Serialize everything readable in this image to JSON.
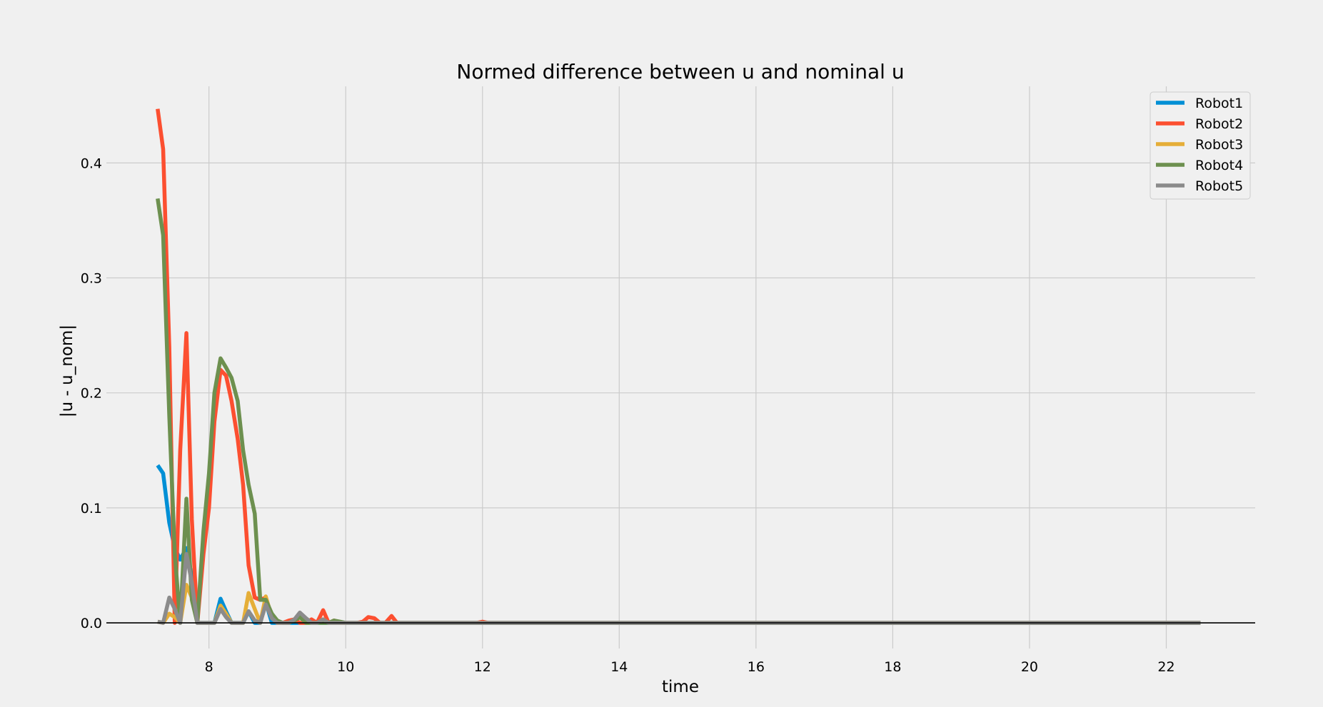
{
  "chart_data": {
    "type": "line",
    "title": "Normed difference between u and nominal u",
    "xlabel": "time",
    "ylabel": "|u - u_nom|",
    "xlim": [
      6.5,
      23.3
    ],
    "ylim": [
      -0.0223,
      0.4666
    ],
    "xticks": [
      8,
      10,
      12,
      14,
      16,
      18,
      20,
      22
    ],
    "yticks": [
      0.0,
      0.1,
      0.2,
      0.3,
      0.4
    ],
    "xtick_labels": [
      "8",
      "10",
      "12",
      "14",
      "16",
      "18",
      "20",
      "22"
    ],
    "ytick_labels": [
      "0.0",
      "0.1",
      "0.2",
      "0.3",
      "0.4"
    ],
    "grid": true,
    "legend_position": "top-right",
    "zero_line": true,
    "x_end": 22.5,
    "series": [
      {
        "name": "Robot1",
        "color": "#008fd5",
        "points": [
          [
            7.25,
            0.137
          ],
          [
            7.33,
            0.13
          ],
          [
            7.42,
            0.087
          ],
          [
            7.5,
            0.065
          ],
          [
            7.58,
            0.055
          ],
          [
            7.67,
            0.065
          ],
          [
            7.75,
            0.04
          ],
          [
            7.83,
            0.0
          ],
          [
            7.92,
            0.0
          ],
          [
            8.0,
            0.0
          ],
          [
            8.08,
            0.0
          ],
          [
            8.17,
            0.021
          ],
          [
            8.25,
            0.01
          ],
          [
            8.33,
            0.0
          ],
          [
            8.42,
            0.0
          ],
          [
            8.5,
            0.0
          ],
          [
            8.58,
            0.01
          ],
          [
            8.67,
            0.0
          ],
          [
            8.75,
            0.0
          ],
          [
            8.83,
            0.018
          ],
          [
            8.92,
            0.0
          ],
          [
            9.0,
            0.0
          ],
          [
            9.33,
            0.0
          ],
          [
            22.5,
            0.0
          ]
        ]
      },
      {
        "name": "Robot2",
        "color": "#fc4f30",
        "points": [
          [
            7.25,
            0.447
          ],
          [
            7.33,
            0.412
          ],
          [
            7.42,
            0.24
          ],
          [
            7.5,
            0.0
          ],
          [
            7.58,
            0.15
          ],
          [
            7.67,
            0.252
          ],
          [
            7.75,
            0.09
          ],
          [
            7.83,
            0.0
          ],
          [
            7.92,
            0.06
          ],
          [
            8.0,
            0.1
          ],
          [
            8.08,
            0.175
          ],
          [
            8.17,
            0.22
          ],
          [
            8.25,
            0.215
          ],
          [
            8.33,
            0.193
          ],
          [
            8.42,
            0.16
          ],
          [
            8.5,
            0.12
          ],
          [
            8.58,
            0.05
          ],
          [
            8.67,
            0.022
          ],
          [
            8.75,
            0.02
          ],
          [
            8.83,
            0.022
          ],
          [
            8.92,
            0.005
          ],
          [
            9.0,
            0.0
          ],
          [
            9.08,
            0.0
          ],
          [
            9.17,
            0.002
          ],
          [
            9.25,
            0.003
          ],
          [
            9.33,
            0.0
          ],
          [
            9.42,
            0.0
          ],
          [
            9.5,
            0.003
          ],
          [
            9.58,
            0.0
          ],
          [
            9.67,
            0.011
          ],
          [
            9.75,
            0.0
          ],
          [
            9.83,
            0.002
          ],
          [
            9.92,
            0.0
          ],
          [
            10.0,
            0.0
          ],
          [
            10.17,
            0.0
          ],
          [
            10.25,
            0.001
          ],
          [
            10.33,
            0.005
          ],
          [
            10.42,
            0.004
          ],
          [
            10.5,
            0.0
          ],
          [
            10.58,
            0.0
          ],
          [
            10.67,
            0.006
          ],
          [
            10.75,
            0.0
          ],
          [
            11.0,
            0.0
          ],
          [
            11.92,
            0.0
          ],
          [
            12.0,
            0.001
          ],
          [
            12.08,
            0.0
          ],
          [
            22.5,
            0.0
          ]
        ]
      },
      {
        "name": "Robot3",
        "color": "#e5ae38",
        "points": [
          [
            7.25,
            0.001
          ],
          [
            7.33,
            0.0
          ],
          [
            7.42,
            0.008
          ],
          [
            7.5,
            0.005
          ],
          [
            7.58,
            0.0
          ],
          [
            7.67,
            0.033
          ],
          [
            7.75,
            0.022
          ],
          [
            7.83,
            0.0
          ],
          [
            7.92,
            0.0
          ],
          [
            8.0,
            0.0
          ],
          [
            8.08,
            0.0
          ],
          [
            8.17,
            0.015
          ],
          [
            8.25,
            0.008
          ],
          [
            8.33,
            0.0
          ],
          [
            8.42,
            0.0
          ],
          [
            8.5,
            0.0
          ],
          [
            8.58,
            0.026
          ],
          [
            8.67,
            0.012
          ],
          [
            8.75,
            0.0
          ],
          [
            8.83,
            0.023
          ],
          [
            8.92,
            0.005
          ],
          [
            9.0,
            0.0
          ],
          [
            9.08,
            0.0
          ],
          [
            9.17,
            0.0
          ],
          [
            9.25,
            0.003
          ],
          [
            9.33,
            0.007
          ],
          [
            9.42,
            0.0
          ],
          [
            9.5,
            0.0
          ],
          [
            9.58,
            0.0
          ],
          [
            9.67,
            0.003
          ],
          [
            9.75,
            0.0
          ],
          [
            10.0,
            0.0
          ],
          [
            22.5,
            0.0
          ]
        ]
      },
      {
        "name": "Robot4",
        "color": "#6d904f",
        "points": [
          [
            7.25,
            0.369
          ],
          [
            7.33,
            0.337
          ],
          [
            7.42,
            0.18
          ],
          [
            7.5,
            0.06
          ],
          [
            7.58,
            0.0
          ],
          [
            7.67,
            0.108
          ],
          [
            7.75,
            0.02
          ],
          [
            7.83,
            0.0
          ],
          [
            7.92,
            0.08
          ],
          [
            8.0,
            0.13
          ],
          [
            8.08,
            0.2
          ],
          [
            8.17,
            0.23
          ],
          [
            8.25,
            0.222
          ],
          [
            8.33,
            0.213
          ],
          [
            8.42,
            0.193
          ],
          [
            8.5,
            0.15
          ],
          [
            8.58,
            0.12
          ],
          [
            8.67,
            0.095
          ],
          [
            8.75,
            0.02
          ],
          [
            8.83,
            0.02
          ],
          [
            8.92,
            0.008
          ],
          [
            9.0,
            0.002
          ],
          [
            9.08,
            0.0
          ],
          [
            9.17,
            0.0
          ],
          [
            9.25,
            0.002
          ],
          [
            9.33,
            0.005
          ],
          [
            9.42,
            0.0
          ],
          [
            9.5,
            0.0
          ],
          [
            9.58,
            0.0
          ],
          [
            9.67,
            0.0
          ],
          [
            9.75,
            0.0
          ],
          [
            9.83,
            0.002
          ],
          [
            9.92,
            0.001
          ],
          [
            10.0,
            0.0
          ],
          [
            22.5,
            0.0
          ]
        ]
      },
      {
        "name": "Robot5",
        "color": "#8b8b8b",
        "points": [
          [
            7.25,
            0.001
          ],
          [
            7.33,
            0.0
          ],
          [
            7.42,
            0.022
          ],
          [
            7.5,
            0.012
          ],
          [
            7.58,
            0.0
          ],
          [
            7.67,
            0.06
          ],
          [
            7.75,
            0.035
          ],
          [
            7.83,
            0.0
          ],
          [
            7.92,
            0.0
          ],
          [
            8.0,
            0.0
          ],
          [
            8.08,
            0.0
          ],
          [
            8.17,
            0.012
          ],
          [
            8.25,
            0.005
          ],
          [
            8.33,
            0.0
          ],
          [
            8.42,
            0.0
          ],
          [
            8.5,
            0.0
          ],
          [
            8.58,
            0.01
          ],
          [
            8.67,
            0.002
          ],
          [
            8.75,
            0.0
          ],
          [
            8.83,
            0.016
          ],
          [
            8.92,
            0.004
          ],
          [
            9.0,
            0.0
          ],
          [
            9.08,
            0.0
          ],
          [
            9.17,
            0.0
          ],
          [
            9.25,
            0.003
          ],
          [
            9.33,
            0.009
          ],
          [
            9.42,
            0.004
          ],
          [
            9.5,
            0.0
          ],
          [
            9.58,
            0.0
          ],
          [
            9.67,
            0.003
          ],
          [
            9.75,
            0.0
          ],
          [
            10.0,
            0.0
          ],
          [
            22.5,
            0.0
          ]
        ]
      }
    ]
  }
}
